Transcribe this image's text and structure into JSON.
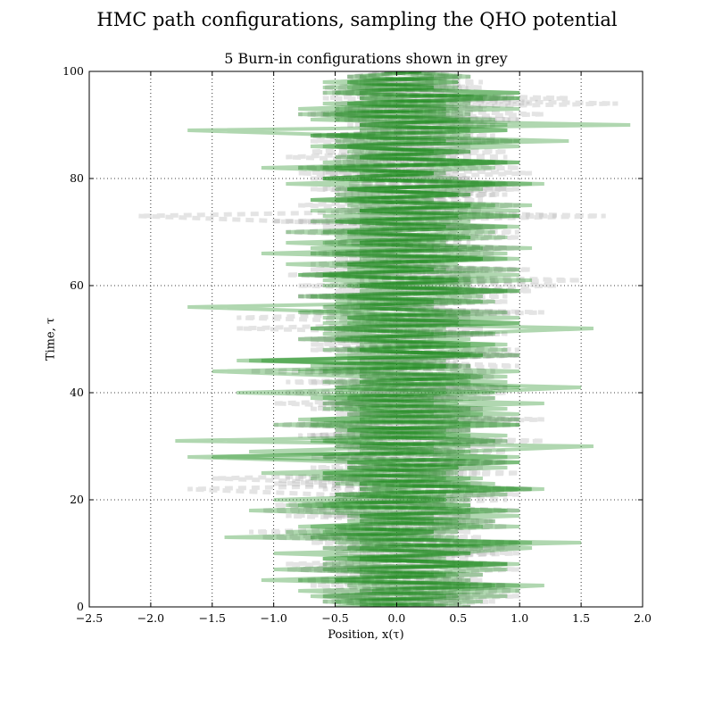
{
  "chart_data": {
    "type": "line",
    "suptitle": "HMC path configurations, sampling the QHO potential",
    "title": "5 Burn-in configurations shown in grey",
    "xlabel": "Position, x(τ)",
    "ylabel": "Time, τ",
    "xlim": [
      -2.5,
      2.0
    ],
    "ylim": [
      0,
      100
    ],
    "xticks": [
      -2.5,
      -2.0,
      -1.5,
      -1.0,
      -0.5,
      0.0,
      0.5,
      1.0,
      1.5,
      2.0
    ],
    "xtick_labels": [
      "−2.5",
      "−2.0",
      "−1.5",
      "−1.0",
      "−0.5",
      "0.0",
      "0.5",
      "1.0",
      "1.5",
      "2.0"
    ],
    "yticks": [
      0,
      20,
      40,
      60,
      80,
      100
    ],
    "ytick_labels": [
      "0",
      "20",
      "40",
      "60",
      "80",
      "100"
    ],
    "grid": true,
    "colors": {
      "burn_in": "#b3b3b3",
      "sample": "#1e8c1e"
    },
    "series": [
      {
        "kind": "burn-in",
        "style": "dashed",
        "color": "#b3b3b3",
        "opacity": 0.35,
        "x": [
          0.3,
          -0.2,
          0.6,
          -0.6,
          0.9,
          -0.3,
          0.7,
          -0.9,
          0.4,
          -0.3,
          0.8,
          -0.6,
          0.5,
          -1.1,
          0.6,
          -0.4,
          0.3,
          -0.9,
          1.0,
          -0.3,
          0.6,
          -0.5,
          1.1,
          -0.2,
          -1.5,
          0.7,
          -0.4,
          0.9,
          -0.6,
          0.5,
          -0.3,
          1.2,
          -0.7,
          0.3,
          -0.8,
          1.0,
          -0.4,
          0.6,
          -1.0,
          0.5,
          -0.2,
          0.9,
          -0.7,
          0.4,
          -1.2,
          0.6,
          -0.3,
          1.0,
          -0.5,
          0.3,
          -0.6,
          0.8,
          -1.3,
          0.5,
          -0.4,
          0.9,
          -0.2,
          0.6,
          -0.8,
          1.1,
          -0.3,
          0.5,
          -0.9,
          0.7,
          -0.4,
          0.3,
          -0.6,
          1.0,
          -0.5,
          0.4,
          -0.3,
          0.8,
          -1.0,
          1.3,
          -0.2,
          0.6,
          -0.5,
          0.9,
          -0.7,
          0.4,
          -0.3,
          1.1,
          -0.6,
          0.5,
          -0.9,
          0.3,
          -0.4,
          0.8,
          -0.5,
          0.6,
          -0.3,
          1.0,
          -0.7,
          0.4,
          -0.2,
          0.9,
          -0.5,
          0.6,
          -0.3,
          0.4,
          -0.1
        ]
      },
      {
        "kind": "burn-in",
        "style": "dashed",
        "color": "#b3b3b3",
        "opacity": 0.35,
        "x": [
          -0.1,
          0.5,
          -0.6,
          1.0,
          -0.2,
          0.7,
          -0.5,
          0.3,
          -0.9,
          0.6,
          -0.3,
          1.0,
          -0.7,
          0.4,
          -0.5,
          0.9,
          -0.3,
          0.6,
          -1.1,
          0.4,
          -0.2,
          0.8,
          -0.6,
          0.3,
          -0.4,
          1.0,
          -0.7,
          0.5,
          -0.3,
          0.9,
          -0.5,
          0.2,
          -0.8,
          0.6,
          -0.4,
          1.2,
          -0.3,
          0.7,
          -0.5,
          0.4,
          -0.9,
          0.6,
          -0.2,
          0.8,
          -0.6,
          1.0,
          -0.3,
          0.5,
          -0.7,
          0.3,
          -0.4,
          0.9,
          -0.6,
          0.5,
          -0.3,
          1.0,
          -0.5,
          0.4,
          -0.8,
          0.7,
          -0.2,
          0.6,
          -0.4,
          1.1,
          -0.7,
          0.3,
          -0.5,
          0.8,
          -0.3,
          0.5,
          -0.9,
          0.7,
          -0.4,
          1.7,
          -0.5,
          0.4,
          -0.3,
          0.8,
          -0.6,
          1.0,
          -0.2,
          0.5,
          -0.8,
          0.4,
          -0.3,
          0.9,
          -0.5,
          0.6,
          -0.7,
          0.3,
          -0.4,
          1.0,
          -0.5,
          0.7,
          -0.3,
          1.4,
          -0.6,
          0.4,
          -0.2,
          0.6,
          0.1
        ]
      },
      {
        "kind": "burn-in",
        "style": "dashed",
        "color": "#b3b3b3",
        "opacity": 0.35,
        "x": [
          0.6,
          -0.4,
          1.0,
          -0.3,
          0.5,
          -0.8,
          0.3,
          -0.6,
          0.9,
          -0.2,
          0.6,
          -0.5,
          1.0,
          -0.7,
          0.4,
          -0.3,
          0.8,
          -0.5,
          0.6,
          -1.0,
          0.3,
          -0.6,
          -1.7,
          0.5,
          -0.9,
          0.4,
          -0.3,
          0.8,
          -0.6,
          0.5,
          -0.4,
          0.9,
          -0.7,
          0.6,
          -0.3,
          1.0,
          -0.5,
          0.4,
          -0.6,
          0.8,
          -0.3,
          0.5,
          -0.9,
          0.7,
          -0.4,
          0.6,
          -0.2,
          1.0,
          -0.5,
          0.3,
          -0.7,
          0.8,
          -0.4,
          0.6,
          -0.3,
          1.2,
          -0.6,
          0.5,
          -0.4,
          0.9,
          -0.8,
          1.5,
          -0.3,
          0.6,
          -0.5,
          0.8,
          -0.7,
          0.4,
          -0.3,
          1.0,
          -0.6,
          0.5,
          -0.9,
          -2.1,
          0.4,
          -0.3,
          0.7,
          -0.5,
          1.0,
          -0.4,
          0.6,
          -0.8,
          0.3,
          -0.5,
          0.9,
          -0.3,
          0.6,
          -0.7,
          0.4,
          -0.2,
          0.8,
          -0.5,
          0.6,
          -0.4,
          1.1,
          -0.3,
          0.5,
          -0.6,
          0.3,
          -0.4,
          0.2
        ]
      },
      {
        "kind": "burn-in",
        "style": "dashed",
        "color": "#b3b3b3",
        "opacity": 0.35,
        "x": [
          -0.3,
          0.8,
          -0.5,
          0.4,
          -0.7,
          0.6,
          -0.3,
          1.0,
          -0.6,
          0.3,
          -0.5,
          0.9,
          -0.4,
          0.7,
          -1.2,
          0.5,
          -0.3,
          0.6,
          -0.8,
          0.4,
          -0.5,
          1.0,
          -0.3,
          0.7,
          -0.6,
          0.5,
          -0.4,
          0.9,
          -0.7,
          0.3,
          -0.5,
          0.8,
          -0.3,
          0.6,
          -1.0,
          0.4,
          -0.4,
          0.7,
          -0.6,
          0.5,
          -0.3,
          0.9,
          -0.5,
          0.4,
          -0.7,
          0.6,
          -0.3,
          1.0,
          -0.4,
          0.5,
          -0.8,
          0.7,
          -0.5,
          0.4,
          -1.3,
          0.6,
          -0.3,
          0.9,
          -0.6,
          0.5,
          -0.4,
          0.8,
          -0.7,
          1.0,
          -0.3,
          0.5,
          -0.5,
          0.9,
          -0.6,
          0.4,
          -0.3,
          0.7,
          -0.8,
          0.5,
          -0.4,
          1.0,
          -0.3,
          0.6,
          -0.5,
          0.8,
          -0.7,
          0.4,
          -0.3,
          0.9,
          -0.5,
          0.6,
          -0.4,
          1.0,
          -0.7,
          0.5,
          -0.3,
          0.6,
          -0.8,
          0.4,
          -0.5,
          0.9,
          -0.3,
          0.7,
          -0.4,
          0.5,
          -0.2
        ]
      },
      {
        "kind": "burn-in",
        "style": "dashed",
        "color": "#b3b3b3",
        "opacity": 0.35,
        "x": [
          0.2,
          -0.6,
          0.5,
          -0.3,
          0.9,
          -0.5,
          0.4,
          -0.8,
          0.6,
          -0.3,
          1.0,
          -0.4,
          0.5,
          -0.7,
          0.3,
          -0.5,
          0.8,
          -0.6,
          0.4,
          -0.3,
          0.9,
          -0.5,
          0.6,
          -1.0,
          0.4,
          -0.3,
          0.7,
          -0.5,
          0.5,
          -0.4,
          0.8,
          -0.6,
          0.3,
          -0.5,
          1.0,
          -0.3,
          0.6,
          -0.7,
          0.4,
          -0.4,
          0.9,
          -0.5,
          0.6,
          -0.3,
          0.8,
          -0.6,
          0.5,
          -0.4,
          1.0,
          -0.7,
          0.3,
          -0.5,
          0.7,
          -0.3,
          0.6,
          -0.8,
          0.4,
          -0.4,
          0.9,
          -0.5,
          1.3,
          -0.3,
          0.6,
          -0.7,
          0.4,
          -0.5,
          0.8,
          -0.3,
          0.6,
          -0.4,
          1.0,
          -0.6,
          0.5,
          -0.3,
          0.7,
          -0.8,
          0.4,
          -0.5,
          0.9,
          -0.3,
          0.6,
          -0.6,
          1.0,
          -0.4,
          0.5,
          -0.7,
          0.3,
          -0.5,
          0.8,
          -0.3,
          0.6,
          -0.4,
          1.2,
          -0.5,
          1.8,
          -0.6,
          0.4,
          -0.3,
          0.7,
          -0.4,
          0.1
        ]
      },
      {
        "kind": "sample",
        "style": "solid",
        "color": "#1e8c1e",
        "opacity": 0.35,
        "x": [
          0.4,
          -0.5,
          0.9,
          -0.2,
          0.6,
          -1.1,
          0.3,
          -0.6,
          1.0,
          -0.4,
          0.6,
          -0.3,
          1.5,
          -1.4,
          0.5,
          -0.7,
          0.3,
          -0.4,
          1.0,
          -0.8,
          0.6,
          -0.3,
          1.1,
          -0.5,
          0.4,
          -0.6,
          0.9,
          -0.3,
          -1.7,
          0.5,
          1.6,
          -1.8,
          0.6,
          -0.4,
          1.0,
          -0.7,
          0.3,
          -0.5,
          1.2,
          -0.6,
          0.5,
          1.5,
          -0.3,
          0.6,
          -0.8,
          0.4,
          -1.2,
          0.7,
          -0.3,
          0.9,
          -0.5,
          0.4,
          1.6,
          -0.6,
          0.5,
          -0.3,
          -1.7,
          0.7,
          -0.4,
          1.0,
          -0.6,
          0.5,
          -0.8,
          0.3,
          -0.4,
          0.9,
          -0.7,
          1.1,
          -0.3,
          0.6,
          -0.9,
          0.4,
          -0.5,
          1.0,
          -0.3,
          0.6,
          -0.7,
          0.5,
          -0.4,
          1.2,
          -0.6,
          0.3,
          -1.1,
          0.8,
          -0.4,
          0.5,
          -0.6,
          1.4,
          -0.3,
          -1.7,
          1.9,
          -0.5,
          0.6,
          -0.8,
          0.4,
          -0.3,
          1.0,
          -0.6,
          0.5,
          -0.4,
          0.2
        ]
      },
      {
        "kind": "sample",
        "style": "solid",
        "color": "#1e8c1e",
        "opacity": 0.35,
        "x": [
          -0.3,
          0.7,
          -0.6,
          0.3,
          1.2,
          -0.8,
          0.5,
          -0.4,
          0.9,
          -0.6,
          0.4,
          1.1,
          -0.5,
          0.3,
          -0.9,
          0.7,
          -0.3,
          1.0,
          -0.5,
          0.6,
          -1.0,
          0.4,
          -0.3,
          0.8,
          -0.6,
          0.5,
          -0.4,
          1.0,
          -1.5,
          0.6,
          -0.3,
          0.9,
          -0.5,
          0.4,
          -0.7,
          1.0,
          -0.3,
          0.6,
          -0.5,
          0.8,
          -1.3,
          0.4,
          -0.6,
          0.9,
          -0.3,
          0.5,
          -1.1,
          0.7,
          -0.4,
          0.6,
          -0.8,
          0.3,
          -0.5,
          1.0,
          -0.6,
          0.4,
          -0.3,
          0.8,
          -0.7,
          0.5,
          -0.4,
          1.1,
          -0.6,
          0.3,
          -0.9,
          0.7,
          -1.1,
          0.5,
          -0.3,
          0.9,
          -0.6,
          0.4,
          -0.5,
          1.0,
          -0.3,
          0.6,
          -0.7,
          0.5,
          -0.4,
          0.9,
          -0.6,
          0.3,
          -0.8,
          1.0,
          -0.3,
          0.6,
          -0.5,
          0.4,
          -0.7,
          0.9,
          -0.3,
          0.5,
          -0.6,
          1.0,
          -0.4,
          0.7,
          -0.5,
          0.3,
          -0.6,
          0.5,
          0.0
        ]
      },
      {
        "kind": "sample",
        "style": "solid",
        "color": "#1e8c1e",
        "opacity": 0.35,
        "x": [
          0.6,
          -0.3,
          0.4,
          -0.8,
          1.0,
          -0.5,
          0.7,
          -0.3,
          0.9,
          -0.6,
          0.5,
          -0.4,
          1.1,
          -0.7,
          0.3,
          -0.5,
          0.8,
          -0.3,
          0.6,
          -0.9,
          0.4,
          -0.5,
          1.2,
          -0.3,
          0.7,
          -0.6,
          0.5,
          -0.4,
          1.0,
          -1.2,
          0.3,
          -0.6,
          0.9,
          -0.4,
          0.6,
          -0.8,
          1.0,
          -0.3,
          0.5,
          -0.7,
          0.4,
          -0.5,
          0.9,
          -0.3,
          -1.5,
          0.6,
          -0.4,
          1.0,
          -0.6,
          0.4,
          -0.3,
          0.8,
          -0.7,
          0.5,
          -0.4,
          0.9,
          -0.6,
          0.3,
          -0.5,
          1.0,
          -0.3,
          0.6,
          -0.8,
          0.4,
          -0.5,
          1.0,
          -0.3,
          0.7,
          -0.6,
          0.4,
          -0.4,
          0.9,
          -0.7,
          0.5,
          -0.3,
          1.1,
          -0.5,
          0.6,
          -0.4,
          0.8,
          -0.6,
          0.3,
          -0.5,
          1.0,
          -0.3,
          0.6,
          -0.7,
          0.4,
          -0.5,
          0.9,
          -0.3,
          0.6,
          -0.8,
          0.5,
          -0.4,
          1.0,
          -0.6,
          0.3,
          -0.4,
          0.6,
          0.1
        ]
      },
      {
        "kind": "sample",
        "style": "solid",
        "color": "#1e8c1e",
        "opacity": 0.35,
        "x": [
          -0.5,
          0.3,
          -0.7,
          1.0,
          -0.4,
          0.6,
          -0.3,
          0.9,
          -0.6,
          0.4,
          -1.0,
          0.7,
          -0.3,
          0.5,
          -0.6,
          1.0,
          -0.4,
          0.3,
          -1.2,
          0.6,
          -0.5,
          0.9,
          -0.3,
          0.6,
          -0.7,
          0.4,
          -0.4,
          1.0,
          -0.6,
          0.3,
          -0.5,
          0.8,
          -0.3,
          0.6,
          -1.0,
          0.5,
          -0.4,
          0.9,
          -0.6,
          0.3,
          -0.5,
          1.0,
          -0.3,
          0.7,
          -0.6,
          0.4,
          -1.3,
          0.6,
          -0.3,
          0.8,
          -0.5,
          0.4,
          -0.7,
          1.0,
          -0.4,
          0.6,
          -0.5,
          0.3,
          -0.8,
          0.9,
          -0.3,
          0.5,
          -0.6,
          1.0,
          -0.4,
          0.7,
          -0.5,
          0.3,
          -0.9,
          0.6,
          -0.4,
          1.0,
          -0.3,
          0.5,
          -0.7,
          0.8,
          -0.4,
          0.6,
          -0.5,
          1.1,
          -0.3,
          0.4,
          -0.6,
          0.9,
          -0.5,
          0.3,
          -0.4,
          1.0,
          -0.7,
          0.6,
          -0.3,
          0.8,
          -0.5,
          0.4,
          -0.6,
          1.0,
          -0.3,
          0.5,
          -0.4,
          0.3,
          -0.1
        ]
      },
      {
        "kind": "sample",
        "style": "solid",
        "color": "#1e8c1e",
        "opacity": 0.35,
        "x": [
          0.1,
          -0.6,
          0.5,
          -0.3,
          0.8,
          -0.5,
          0.4,
          -1.0,
          0.7,
          -0.3,
          0.6,
          -0.6,
          1.0,
          -0.4,
          0.3,
          -0.8,
          0.5,
          -0.3,
          0.9,
          -0.6,
          0.4,
          -0.5,
          1.0,
          -0.3,
          0.6,
          -1.1,
          0.5,
          -0.4,
          0.9,
          -0.3,
          0.6,
          -0.7,
          0.4,
          -0.5,
          1.0,
          -0.3,
          0.7,
          -0.6,
          0.3,
          -0.4,
          0.8,
          -0.5,
          0.6,
          -0.3,
          1.0,
          -0.7,
          0.4,
          -0.5,
          0.9,
          -0.3,
          0.6,
          -0.6,
          0.4,
          -0.4,
          1.0,
          -0.8,
          0.3,
          -0.5,
          0.7,
          -0.3,
          0.6,
          -0.6,
          1.0,
          -0.4,
          0.5,
          -0.3,
          0.9,
          -0.7,
          0.4,
          -0.5,
          0.8,
          -0.3,
          0.6,
          -0.6,
          1.0,
          -0.4,
          0.3,
          -0.5,
          0.7,
          -0.9,
          0.5,
          -0.3,
          0.8,
          -0.6,
          0.4,
          -0.4,
          1.0,
          -0.5,
          0.6,
          -0.3,
          0.9,
          -0.7,
          0.4,
          -0.5,
          0.6,
          -0.3,
          1.0,
          -0.4,
          0.5,
          -0.3,
          0.2
        ]
      }
    ]
  }
}
